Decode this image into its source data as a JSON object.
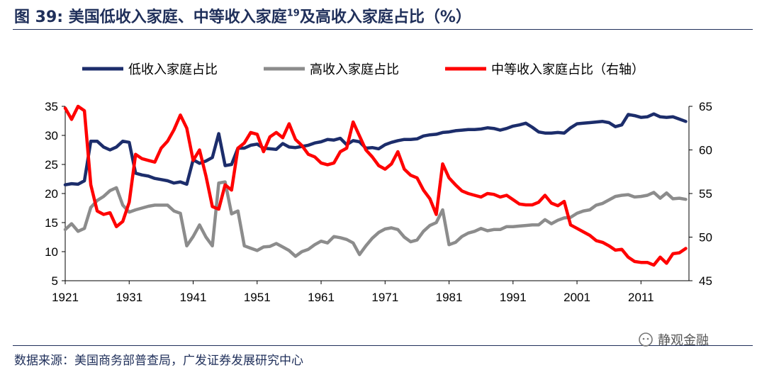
{
  "header": {
    "title_prefix": "图 39:",
    "title_main": "美国低收入家庭、中等收入家庭",
    "title_sup": "19",
    "title_rest": "及高收入家庭占比（%）"
  },
  "footer": {
    "source": "数据来源：美国商务部普查局，广发证券发展研究中心",
    "watermark": "静观金融"
  },
  "colors": {
    "low": "#1c2d6b",
    "high": "#8c8c8c",
    "mid": "#ff0000"
  },
  "chart_data": {
    "type": "line",
    "x_ticks": [
      "1921",
      "1931",
      "1941",
      "1951",
      "1961",
      "1971",
      "1981",
      "1991",
      "2001",
      "2011"
    ],
    "ylim_left": [
      5,
      35
    ],
    "yticks_left": [
      5,
      10,
      15,
      20,
      25,
      30,
      35
    ],
    "ylim_right": [
      45,
      65
    ],
    "yticks_right": [
      45,
      50,
      55,
      60,
      65
    ],
    "legend_position": "top",
    "series": [
      {
        "name": "低收入家庭占比",
        "axis": "left",
        "color": "#1c2d6b",
        "x": [
          1921,
          1922,
          1923,
          1924,
          1925,
          1926,
          1927,
          1928,
          1929,
          1930,
          1931,
          1932,
          1933,
          1934,
          1935,
          1936,
          1937,
          1938,
          1939,
          1940,
          1941,
          1942,
          1943,
          1944,
          1945,
          1946,
          1947,
          1948,
          1949,
          1950,
          1951,
          1952,
          1953,
          1954,
          1955,
          1956,
          1957,
          1958,
          1959,
          1960,
          1961,
          1962,
          1963,
          1964,
          1965,
          1966,
          1967,
          1968,
          1969,
          1970,
          1971,
          1972,
          1973,
          1974,
          1975,
          1976,
          1977,
          1978,
          1979,
          1980,
          1981,
          1982,
          1983,
          1984,
          1985,
          1986,
          1987,
          1988,
          1989,
          1990,
          1991,
          1992,
          1993,
          1994,
          1995,
          1996,
          1997,
          1998,
          1999,
          2000,
          2001,
          2002,
          2003,
          2004,
          2005,
          2006,
          2007,
          2008,
          2009,
          2010,
          2011,
          2012,
          2013,
          2014,
          2015,
          2016,
          2017,
          2018
        ],
        "y": [
          21.5,
          21.7,
          21.6,
          22.2,
          29,
          29,
          28,
          27.5,
          28,
          29,
          28.8,
          23.5,
          23.2,
          23,
          22.6,
          22.4,
          22.2,
          21.8,
          22,
          21.6,
          25.8,
          25.2,
          25.6,
          26.2,
          30.3,
          24.8,
          25,
          27.8,
          27.8,
          28.3,
          28.5,
          27.8,
          27.7,
          27.6,
          28.6,
          28,
          27.9,
          28.1,
          28.3,
          28.7,
          28.9,
          29.3,
          29.2,
          29.5,
          28.4,
          29.1,
          28.9,
          27.8,
          27.9,
          27.7,
          28.4,
          28.8,
          29.1,
          29.3,
          29.3,
          29.4,
          29.9,
          30.1,
          30.2,
          30.5,
          30.6,
          30.8,
          30.9,
          31,
          31,
          31.1,
          31.3,
          31.2,
          30.9,
          31.2,
          31.6,
          31.8,
          32.1,
          31.4,
          30.6,
          30.4,
          30.4,
          30.5,
          30.4,
          31.3,
          32,
          32.1,
          32.2,
          32.3,
          32.4,
          32.2,
          31.5,
          31.8,
          33.6,
          33.4,
          33.1,
          33.2,
          33.7,
          33.2,
          33.1,
          33.2,
          32.8,
          32.4
        ]
      },
      {
        "name": "高收入家庭占比",
        "axis": "left",
        "color": "#8c8c8c",
        "x": [
          1921,
          1922,
          1923,
          1924,
          1925,
          1926,
          1927,
          1928,
          1929,
          1930,
          1931,
          1932,
          1933,
          1934,
          1935,
          1936,
          1937,
          1938,
          1939,
          1940,
          1941,
          1942,
          1943,
          1944,
          1945,
          1946,
          1947,
          1948,
          1949,
          1950,
          1951,
          1952,
          1953,
          1954,
          1955,
          1956,
          1957,
          1958,
          1959,
          1960,
          1961,
          1962,
          1963,
          1964,
          1965,
          1966,
          1967,
          1968,
          1969,
          1970,
          1971,
          1972,
          1973,
          1974,
          1975,
          1976,
          1977,
          1978,
          1979,
          1980,
          1981,
          1982,
          1983,
          1984,
          1985,
          1986,
          1987,
          1988,
          1989,
          1990,
          1991,
          1992,
          1993,
          1994,
          1995,
          1996,
          1997,
          1998,
          1999,
          2000,
          2001,
          2002,
          2003,
          2004,
          2005,
          2006,
          2007,
          2008,
          2009,
          2010,
          2011,
          2012,
          2013,
          2014,
          2015,
          2016,
          2017,
          2018
        ],
        "y": [
          13.8,
          14.8,
          13.5,
          14,
          17.6,
          18.8,
          19.5,
          20.5,
          21,
          18,
          16.8,
          17.2,
          17.5,
          17.8,
          18,
          18,
          18,
          17,
          16.6,
          11,
          12.6,
          14.6,
          12.5,
          11,
          21.8,
          22,
          16.5,
          17,
          11,
          10.6,
          10.2,
          10.8,
          10.9,
          11.4,
          10.8,
          10.2,
          9.2,
          10,
          10.4,
          11.2,
          11.8,
          11.5,
          12.6,
          12.4,
          12.1,
          11.5,
          9.5,
          11,
          12.3,
          13.3,
          13.9,
          14.1,
          13.8,
          12.5,
          11.7,
          12,
          13.5,
          14.5,
          15,
          17.2,
          11.2,
          11.6,
          12.6,
          13.2,
          13.5,
          14,
          13.6,
          13.8,
          13.8,
          14.3,
          14.3,
          14.4,
          14.5,
          14.6,
          14.6,
          15.5,
          14.8,
          15.4,
          15.8,
          15.9,
          16.6,
          17,
          17.2,
          18,
          18.3,
          18.9,
          19.5,
          19.7,
          19.8,
          19.4,
          19.5,
          19.7,
          20.2,
          19.2,
          20.1,
          19.1,
          19.2,
          19
        ]
      },
      {
        "name": "中等收入家庭占比（右轴）",
        "axis": "right",
        "color": "#ff0000",
        "x": [
          1921,
          1922,
          1923,
          1924,
          1925,
          1926,
          1927,
          1928,
          1929,
          1930,
          1931,
          1932,
          1933,
          1934,
          1935,
          1936,
          1937,
          1938,
          1939,
          1940,
          1941,
          1942,
          1943,
          1944,
          1945,
          1946,
          1947,
          1948,
          1949,
          1950,
          1951,
          1952,
          1953,
          1954,
          1955,
          1956,
          1957,
          1958,
          1959,
          1960,
          1961,
          1962,
          1963,
          1964,
          1965,
          1966,
          1967,
          1968,
          1969,
          1970,
          1971,
          1972,
          1973,
          1974,
          1975,
          1976,
          1977,
          1978,
          1979,
          1980,
          1981,
          1982,
          1983,
          1984,
          1985,
          1986,
          1987,
          1988,
          1989,
          1990,
          1991,
          1992,
          1993,
          1994,
          1995,
          1996,
          1997,
          1998,
          1999,
          2000,
          2001,
          2002,
          2003,
          2004,
          2005,
          2006,
          2007,
          2008,
          2009,
          2010,
          2011,
          2012,
          2013,
          2014,
          2015,
          2016,
          2017,
          2018
        ],
        "y": [
          64.8,
          63.5,
          65,
          64.5,
          56,
          53,
          52.6,
          52.8,
          51.2,
          51.8,
          54,
          59.5,
          59,
          58.8,
          58.6,
          60.2,
          61,
          62.3,
          64,
          62.5,
          58.8,
          60,
          57,
          53.5,
          53.2,
          56,
          55.4,
          60.2,
          60.8,
          62,
          61.8,
          59.8,
          61.5,
          62,
          61.4,
          63,
          61.2,
          60.5,
          59.5,
          59.2,
          58.5,
          58.3,
          58.5,
          59.8,
          60.2,
          63.2,
          61.6,
          60,
          59.2,
          58.2,
          57.8,
          58.4,
          59.8,
          57.8,
          57.1,
          56.8,
          55.4,
          54.4,
          52.6,
          58.4,
          56.8,
          56,
          55.3,
          55,
          54.8,
          54.6,
          55,
          54.9,
          54.6,
          54.8,
          54.3,
          53.8,
          53.7,
          53.7,
          54,
          54.8,
          53.9,
          53.6,
          54.1,
          51.4,
          51,
          50.6,
          50.2,
          49.6,
          49.4,
          49,
          48.5,
          48.6,
          47.7,
          47.2,
          47.1,
          47.1,
          46.8,
          47.7,
          47,
          48.1,
          48.2,
          48.7
        ]
      }
    ]
  }
}
